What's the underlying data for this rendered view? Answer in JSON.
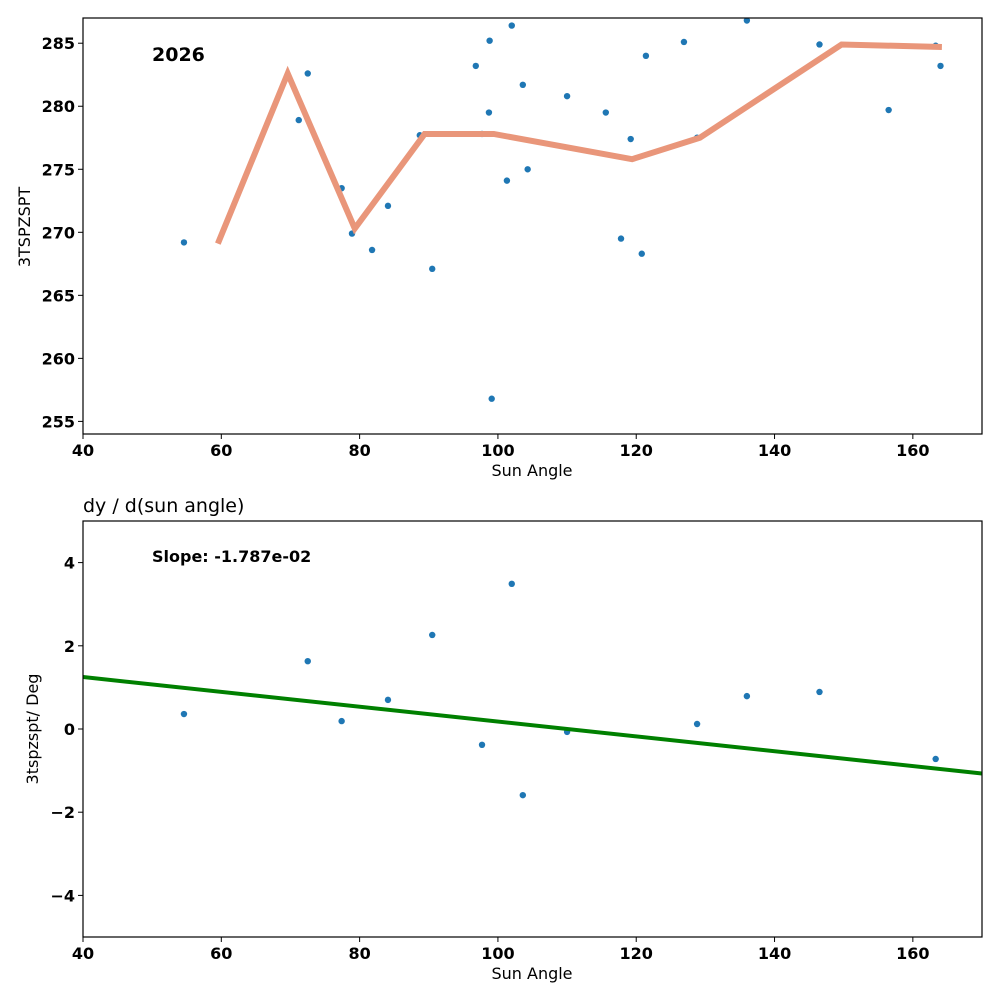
{
  "colors": {
    "points": "#1f77b4",
    "smooth_line": "#e9967a",
    "fit_line": "#008000",
    "axes": "#000000"
  },
  "chart_data": [
    {
      "type": "scatter",
      "title": "",
      "annotation": "2026",
      "xlabel": "Sun Angle",
      "ylabel": "3TSPZSPT",
      "xlim": [
        40,
        170
      ],
      "ylim": [
        254,
        287
      ],
      "xticks": [
        "40",
        "60",
        "80",
        "100",
        "120",
        "140",
        "160"
      ],
      "xtick_values": [
        40,
        60,
        80,
        100,
        120,
        140,
        160
      ],
      "yticks": [
        "255",
        "260",
        "265",
        "270",
        "275",
        "280",
        "285"
      ],
      "ytick_values": [
        255,
        260,
        265,
        270,
        275,
        280,
        285
      ],
      "points": {
        "x": [
          54.6,
          71.2,
          72.5,
          77.4,
          78.9,
          81.8,
          84.1,
          88.7,
          90.5,
          96.8,
          97.7,
          98.7,
          98.8,
          99.1,
          101.3,
          102.0,
          103.6,
          104.3,
          110.0,
          115.6,
          117.8,
          119.2,
          120.8,
          121.4,
          126.9,
          128.8,
          136.0,
          146.5,
          156.5,
          163.3,
          164.0
        ],
        "y": [
          269.2,
          278.9,
          282.6,
          273.5,
          269.9,
          268.6,
          272.1,
          277.7,
          267.1,
          283.2,
          277.8,
          279.5,
          285.2,
          256.8,
          274.1,
          286.4,
          281.7,
          275.0,
          280.8,
          279.5,
          269.5,
          277.4,
          268.3,
          284.0,
          285.1,
          277.5,
          286.8,
          284.9,
          279.7,
          284.8,
          283.2
        ]
      },
      "line": {
        "x": [
          59.5,
          69.6,
          79.3,
          89.4,
          99.4,
          119.4,
          129.2,
          149.7,
          164.2
        ],
        "y": [
          269.1,
          282.6,
          270.3,
          277.8,
          277.8,
          275.8,
          277.5,
          284.9,
          284.7
        ]
      }
    },
    {
      "type": "scatter",
      "title": "dy / d(sun angle)",
      "annotation": "Slope: -1.787e-02",
      "xlabel": "Sun Angle",
      "ylabel": "3tspzspt/ Deg",
      "xlim": [
        40,
        170
      ],
      "ylim": [
        -5,
        5
      ],
      "xticks": [
        "40",
        "60",
        "80",
        "100",
        "120",
        "140",
        "160"
      ],
      "xtick_values": [
        40,
        60,
        80,
        100,
        120,
        140,
        160
      ],
      "yticks": [
        "4",
        "2",
        "0",
        "−2",
        "−4"
      ],
      "ytick_values": [
        4,
        2,
        0,
        -2,
        -4
      ],
      "points": {
        "x": [
          54.6,
          72.5,
          77.4,
          84.1,
          90.5,
          97.7,
          102.0,
          103.6,
          110.0,
          128.8,
          136.0,
          146.5,
          163.3
        ],
        "y": [
          0.36,
          1.63,
          0.19,
          0.7,
          2.26,
          -0.38,
          3.49,
          -1.59,
          -0.07,
          0.12,
          0.79,
          0.89,
          -0.72
        ]
      },
      "fit_line": {
        "x": [
          40,
          170
        ],
        "y": [
          1.25,
          -1.07
        ]
      }
    }
  ]
}
